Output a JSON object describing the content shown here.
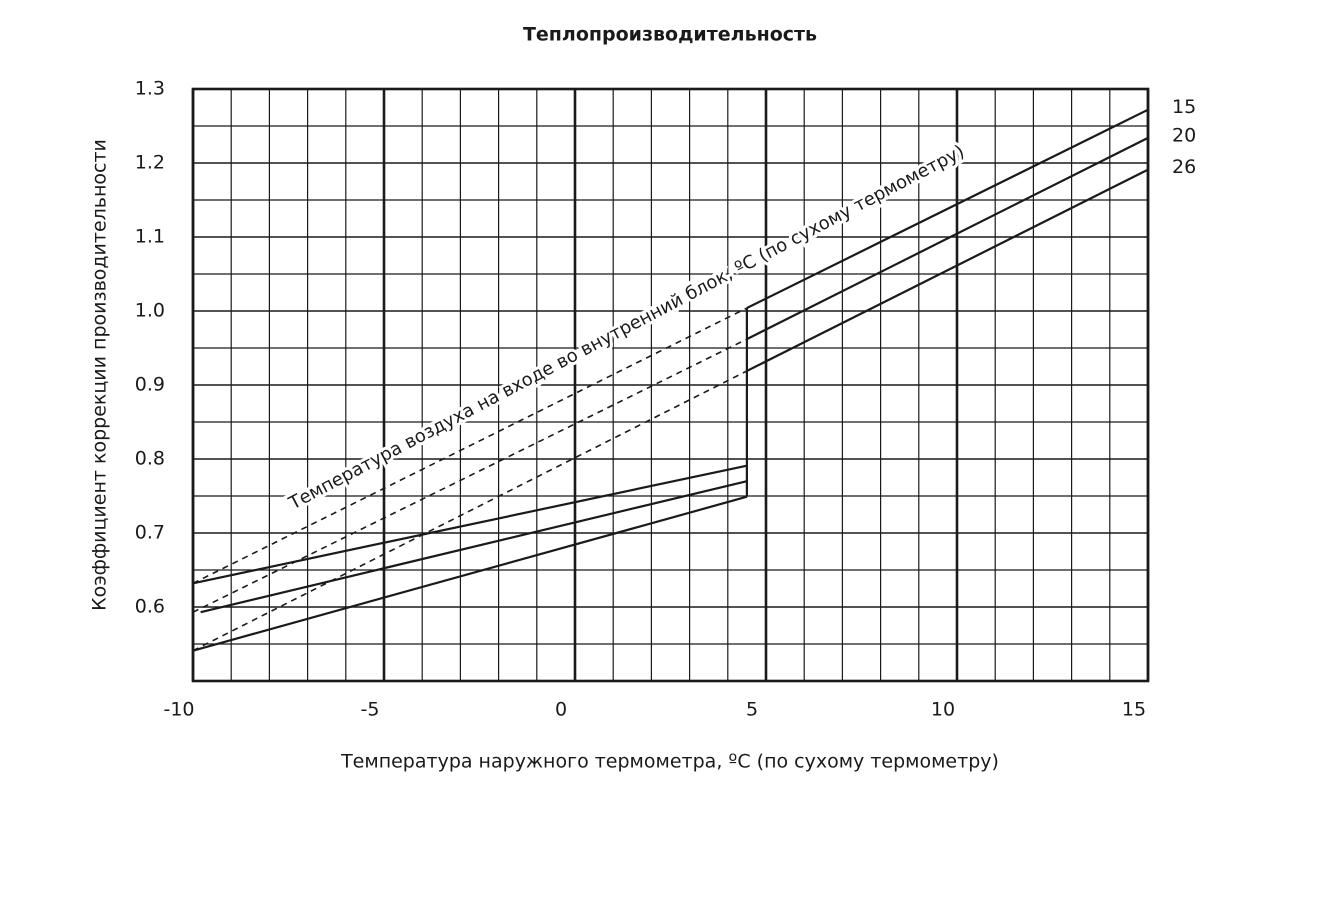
{
  "chart_data": {
    "type": "line",
    "title": "Теплопроизводительность",
    "x_label": "Температура наружного термометра, ºC (по сухому термометру)",
    "y_label": "Коэффициент коррекции производительности",
    "annotation": "Температура воздуха на входе во внутренний блок, ºC (по сухому термометру)",
    "xlim": [
      -10,
      15
    ],
    "xticks": [
      -10,
      -5,
      0,
      5,
      10,
      15
    ],
    "x_minor_ticks": [
      -9,
      -8,
      -7,
      -6,
      -4,
      -3,
      -2,
      -1,
      1,
      2,
      3,
      4,
      6,
      7,
      8,
      9,
      11,
      12,
      13,
      14
    ],
    "ylim": [
      0.5,
      1.3
    ],
    "yticks": [
      0.6,
      0.7,
      0.8,
      0.9,
      {
        "value": 1,
        "label": "1.0"
      },
      1.1,
      1.2,
      1.3
    ],
    "y_minor_ticks": [
      0.55,
      0.65,
      0.75,
      0.85,
      0.95,
      1.05,
      1.15,
      1.25
    ],
    "grid": true,
    "color": "#1a1a1a",
    "series": [
      {
        "name": "15",
        "low": {
          "x": [
            -10,
            4.5
          ],
          "values": [
            0.632,
            0.791
          ]
        },
        "dashed": {
          "x": [
            -10,
            4.5
          ],
          "values": [
            0.632,
            1.004
          ]
        },
        "high": {
          "x": [
            4.5,
            15
          ],
          "values": [
            1.004,
            1.272
          ]
        }
      },
      {
        "name": "20",
        "low": {
          "x": [
            -9.8,
            4.5
          ],
          "values": [
            0.593,
            0.77
          ]
        },
        "dashed": {
          "x": [
            -10,
            4.5
          ],
          "values": [
            0.593,
            0.962
          ]
        },
        "high": {
          "x": [
            4.5,
            15
          ],
          "values": [
            0.962,
            1.234
          ]
        }
      },
      {
        "name": "26",
        "low": {
          "x": [
            -10,
            4.5
          ],
          "values": [
            0.541,
            0.749
          ]
        },
        "dashed": {
          "x": [
            -10,
            4.5
          ],
          "values": [
            0.541,
            0.919
          ]
        },
        "high": {
          "x": [
            4.5,
            15
          ],
          "values": [
            0.919,
            1.191
          ]
        }
      }
    ]
  }
}
